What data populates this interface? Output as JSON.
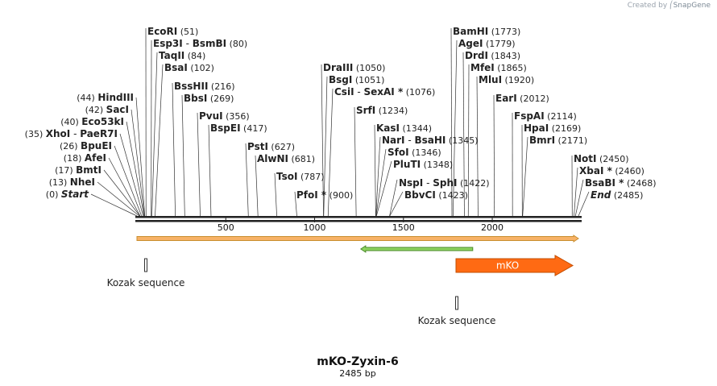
{
  "credit": {
    "prefix": "Created by",
    "brand": "SnapGene"
  },
  "title": "mKO-Zyxin-6",
  "length_label": "2485 bp",
  "sequence_length": 2485,
  "colors": {
    "backbone": "#222222",
    "orf_arrow": "#f7b267",
    "orf_arrow_edge": "#c98e2f",
    "green_arrow": "#8dd35f",
    "green_arrow_edge": "#4a8a2a",
    "mko_fill": "#ff6a13",
    "mko_edge": "#c24d00",
    "site_line": "#333333",
    "feature_text": "#222222"
  },
  "ruler": [
    {
      "pos": 500,
      "label": "500"
    },
    {
      "pos": 1000,
      "label": "1000"
    },
    {
      "pos": 1500,
      "label": "1500"
    },
    {
      "pos": 2000,
      "label": "2000"
    }
  ],
  "sites": [
    {
      "name": "Start",
      "pos_label": "(0)",
      "pos": 0,
      "italic": true,
      "side": "left"
    },
    {
      "name": "NheI",
      "pos_label": "(13)",
      "pos": 13,
      "side": "left"
    },
    {
      "name": "BmtI",
      "pos_label": "(17)",
      "pos": 17,
      "side": "left"
    },
    {
      "name": "AfeI",
      "pos_label": "(18)",
      "pos": 18,
      "side": "left"
    },
    {
      "name": "BpuEI",
      "pos_label": "(26)",
      "pos": 26,
      "side": "left"
    },
    {
      "name": "XhoI",
      "name2": "PaeR7I",
      "pos_label": "(35)",
      "pos": 35,
      "side": "left"
    },
    {
      "name": "Eco53kI",
      "pos_label": "(40)",
      "pos": 40,
      "side": "left"
    },
    {
      "name": "SacI",
      "pos_label": "(42)",
      "pos": 42,
      "side": "left"
    },
    {
      "name": "HindIII",
      "pos_label": "(44)",
      "pos": 44,
      "side": "left"
    },
    {
      "name": "EcoRI",
      "pos_label": "(51)",
      "pos": 51,
      "side": "right"
    },
    {
      "name": "Esp3I",
      "name2": "BsmBI",
      "pos_label": "(80)",
      "pos": 80,
      "side": "right"
    },
    {
      "name": "TaqII",
      "pos_label": "(84)",
      "pos": 84,
      "side": "right"
    },
    {
      "name": "BsaI",
      "pos_label": "(102)",
      "pos": 102,
      "side": "right"
    },
    {
      "name": "BssHII",
      "pos_label": "(216)",
      "pos": 216,
      "side": "right"
    },
    {
      "name": "BbsI",
      "pos_label": "(269)",
      "pos": 269,
      "side": "right"
    },
    {
      "name": "PvuI",
      "pos_label": "(356)",
      "pos": 356,
      "side": "right"
    },
    {
      "name": "BspEI",
      "pos_label": "(417)",
      "pos": 417,
      "side": "right"
    },
    {
      "name": "PstI",
      "pos_label": "(627)",
      "pos": 627,
      "side": "right"
    },
    {
      "name": "AlwNI",
      "pos_label": "(681)",
      "pos": 681,
      "side": "right"
    },
    {
      "name": "TsoI",
      "pos_label": "(787)",
      "pos": 787,
      "side": "right"
    },
    {
      "name": "PfoI *",
      "pos_label": "(900)",
      "pos": 900,
      "side": "right"
    },
    {
      "name": "DraIII",
      "pos_label": "(1050)",
      "pos": 1050,
      "side": "right"
    },
    {
      "name": "BsgI",
      "pos_label": "(1051)",
      "pos": 1051,
      "side": "right"
    },
    {
      "name": "CsiI",
      "name2": "SexAI *",
      "pos_label": "(1076)",
      "pos": 1076,
      "side": "right"
    },
    {
      "name": "SrfI",
      "pos_label": "(1234)",
      "pos": 1234,
      "side": "right"
    },
    {
      "name": "KasI",
      "pos_label": "(1344)",
      "pos": 1344,
      "side": "right"
    },
    {
      "name": "NarI",
      "name2": "BsaHI",
      "pos_label": "(1345)",
      "pos": 1345,
      "side": "right"
    },
    {
      "name": "SfoI",
      "pos_label": "(1346)",
      "pos": 1346,
      "side": "right"
    },
    {
      "name": "PluTI",
      "pos_label": "(1348)",
      "pos": 1348,
      "side": "right"
    },
    {
      "name": "NspI",
      "name2": "SphI",
      "pos_label": "(1422)",
      "pos": 1422,
      "side": "right"
    },
    {
      "name": "BbvCI",
      "pos_label": "(1423)",
      "pos": 1423,
      "side": "right"
    },
    {
      "name": "BamHI",
      "pos_label": "(1773)",
      "pos": 1773,
      "side": "right"
    },
    {
      "name": "AgeI",
      "pos_label": "(1779)",
      "pos": 1779,
      "side": "right"
    },
    {
      "name": "DrdI",
      "pos_label": "(1843)",
      "pos": 1843,
      "side": "right"
    },
    {
      "name": "MfeI",
      "pos_label": "(1865)",
      "pos": 1865,
      "side": "right"
    },
    {
      "name": "MluI",
      "pos_label": "(1920)",
      "pos": 1920,
      "side": "right"
    },
    {
      "name": "EarI",
      "pos_label": "(2012)",
      "pos": 2012,
      "side": "right"
    },
    {
      "name": "FspAI",
      "pos_label": "(2114)",
      "pos": 2114,
      "side": "right"
    },
    {
      "name": "HpaI",
      "pos_label": "(2169)",
      "pos": 2169,
      "side": "right"
    },
    {
      "name": "BmrI",
      "pos_label": "(2171)",
      "pos": 2171,
      "side": "right"
    },
    {
      "name": "NotI",
      "pos_label": "(2450)",
      "pos": 2450,
      "side": "right"
    },
    {
      "name": "XbaI *",
      "pos_label": "(2460)",
      "pos": 2460,
      "side": "right"
    },
    {
      "name": "BsaBI *",
      "pos_label": "(2468)",
      "pos": 2468,
      "side": "right"
    },
    {
      "name": "End",
      "pos_label": "(2485)",
      "pos": 2485,
      "italic": true,
      "side": "right"
    }
  ],
  "features": [
    {
      "kind": "orf",
      "start": 0,
      "end": 2485,
      "direction": "forward"
    },
    {
      "kind": "orf",
      "start": 1260,
      "end": 1890,
      "direction": "reverse"
    },
    {
      "kind": "misc",
      "label": "Kozak sequence",
      "start": 55,
      "end": 65
    },
    {
      "kind": "misc",
      "label": "Kozak sequence",
      "start": 1770,
      "end": 1780
    },
    {
      "kind": "cds",
      "label": "mKO",
      "start": 1790,
      "end": 2485,
      "direction": "forward"
    }
  ]
}
